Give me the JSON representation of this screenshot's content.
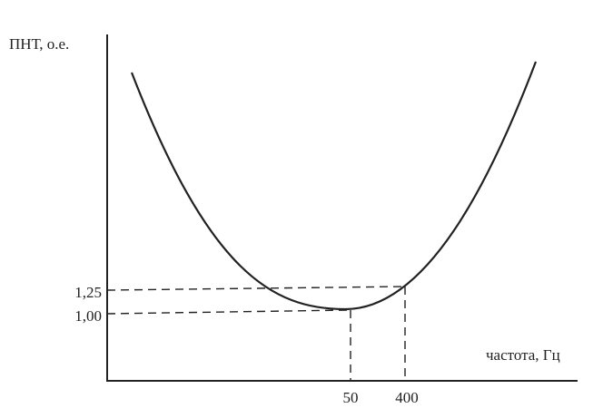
{
  "axes": {
    "y_label": "ПНТ, о.е.",
    "x_label": "частота, Гц"
  },
  "y_marks": [
    "1,25",
    "1,00"
  ],
  "x_marks": [
    "50",
    "400"
  ]
}
